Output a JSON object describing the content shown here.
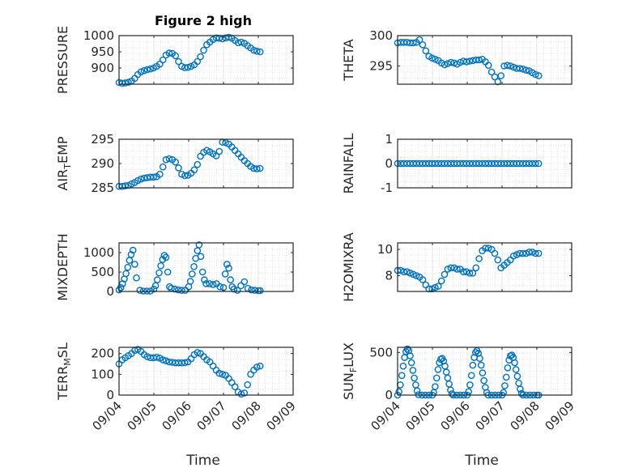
{
  "title": "Figure 2 high",
  "x_axis_label": "Time",
  "colors": {
    "marker": "#0072BD",
    "axis": "#262626",
    "grid": "#dcdcdc"
  },
  "chart_data": [
    {
      "type": "scatter",
      "ylabel": "PRESSURE",
      "ylim": [
        850,
        1000
      ],
      "yticks": [
        "900",
        "950",
        "1000"
      ],
      "x_days": [
        4.0,
        4.09,
        4.18,
        4.27,
        4.36,
        4.45,
        4.54,
        4.63,
        4.72,
        4.81,
        4.9,
        4.99,
        5.08,
        5.17,
        5.26,
        5.35,
        5.44,
        5.53,
        5.62,
        5.71,
        5.8,
        5.89,
        5.98,
        6.07,
        6.16,
        6.25,
        6.34,
        6.43,
        6.52,
        6.61,
        6.7,
        6.79,
        6.88,
        6.97,
        7.06,
        7.15,
        7.24,
        7.33,
        7.42,
        7.51,
        7.6,
        7.69,
        7.78,
        7.87,
        7.96,
        8.05
      ],
      "y": [
        855,
        853,
        854,
        856,
        860,
        868,
        880,
        888,
        892,
        895,
        897,
        900,
        905,
        912,
        925,
        940,
        946,
        945,
        938,
        920,
        905,
        901,
        902,
        905,
        910,
        920,
        935,
        955,
        972,
        980,
        988,
        993,
        992,
        990,
        993,
        995,
        992,
        985,
        978,
        980,
        976,
        969,
        962,
        955,
        952,
        950
      ]
    },
    {
      "type": "scatter",
      "ylabel": "THETA",
      "ylim": [
        292,
        300
      ],
      "yticks": [
        "295",
        "300"
      ],
      "x_days": [
        4.0,
        4.09,
        4.18,
        4.27,
        4.36,
        4.45,
        4.54,
        4.63,
        4.72,
        4.81,
        4.9,
        4.99,
        5.08,
        5.17,
        5.26,
        5.35,
        5.44,
        5.53,
        5.62,
        5.71,
        5.8,
        5.89,
        5.98,
        6.07,
        6.16,
        6.25,
        6.34,
        6.43,
        6.52,
        6.61,
        6.7,
        6.79,
        6.88,
        6.97,
        7.06,
        7.15,
        7.24,
        7.33,
        7.42,
        7.51,
        7.6,
        7.69,
        7.78,
        7.87,
        7.96,
        8.05
      ],
      "y": [
        298.8,
        298.9,
        298.9,
        298.9,
        298.8,
        298.8,
        298.9,
        299.3,
        298.5,
        297.5,
        296.6,
        296.3,
        296.1,
        295.9,
        295.5,
        295.2,
        295.4,
        295.6,
        295.5,
        295.3,
        295.6,
        295.8,
        295.7,
        295.8,
        295.9,
        296.0,
        296.0,
        296.1,
        295.7,
        295.1,
        294.0,
        293.2,
        292.4,
        293.4,
        295.0,
        295.1,
        295.0,
        294.8,
        294.6,
        294.6,
        294.5,
        294.3,
        294.2,
        293.9,
        293.6,
        293.4
      ]
    },
    {
      "type": "scatter",
      "ylabel": "AIR_TEMP",
      "ylim": [
        285,
        295
      ],
      "yticks": [
        "285",
        "290",
        "295"
      ],
      "x_days": [
        4.0,
        4.09,
        4.18,
        4.27,
        4.36,
        4.45,
        4.54,
        4.63,
        4.72,
        4.81,
        4.9,
        4.99,
        5.08,
        5.17,
        5.26,
        5.35,
        5.44,
        5.53,
        5.62,
        5.71,
        5.8,
        5.89,
        5.98,
        6.07,
        6.16,
        6.25,
        6.34,
        6.43,
        6.52,
        6.61,
        6.7,
        6.79,
        6.88,
        6.97,
        7.06,
        7.15,
        7.24,
        7.33,
        7.42,
        7.51,
        7.6,
        7.69,
        7.78,
        7.87,
        7.96,
        8.05
      ],
      "y": [
        285.3,
        285.3,
        285.4,
        285.5,
        285.8,
        286.1,
        286.5,
        286.8,
        287.0,
        287.1,
        287.2,
        287.2,
        287.3,
        287.8,
        289.3,
        290.8,
        291.0,
        290.8,
        290.3,
        289.1,
        287.8,
        287.5,
        287.6,
        288.0,
        288.7,
        289.8,
        291.5,
        292.3,
        292.7,
        292.4,
        292.0,
        291.6,
        292.5,
        294.4,
        294.3,
        294.0,
        293.4,
        292.7,
        292.0,
        291.3,
        290.6,
        290.0,
        289.4,
        289.0,
        288.9,
        289.0
      ]
    },
    {
      "type": "scatter",
      "ylabel": "RAINFALL",
      "ylim": [
        -1,
        1
      ],
      "yticks": [
        "-1",
        "0",
        "1"
      ],
      "x_days": [
        4.0,
        4.09,
        4.18,
        4.27,
        4.36,
        4.45,
        4.54,
        4.63,
        4.72,
        4.81,
        4.9,
        4.99,
        5.08,
        5.17,
        5.26,
        5.35,
        5.44,
        5.53,
        5.62,
        5.71,
        5.8,
        5.89,
        5.98,
        6.07,
        6.16,
        6.25,
        6.34,
        6.43,
        6.52,
        6.61,
        6.7,
        6.79,
        6.88,
        6.97,
        7.06,
        7.15,
        7.24,
        7.33,
        7.42,
        7.51,
        7.6,
        7.69,
        7.78,
        7.87,
        7.96,
        8.05
      ],
      "y": [
        0,
        0,
        0,
        0,
        0,
        0,
        0,
        0,
        0,
        0,
        0,
        0,
        0,
        0,
        0,
        0,
        0,
        0,
        0,
        0,
        0,
        0,
        0,
        0,
        0,
        0,
        0,
        0,
        0,
        0,
        0,
        0,
        0,
        0,
        0,
        0,
        0,
        0,
        0,
        0,
        0,
        0,
        0,
        0,
        0,
        0
      ]
    },
    {
      "type": "scatter",
      "ylabel": "MIXDEPTH",
      "ylim": [
        0,
        1250
      ],
      "yticks": [
        "0",
        "500",
        "1000"
      ],
      "x_days": [
        4.0,
        4.05,
        4.1,
        4.15,
        4.2,
        4.25,
        4.3,
        4.35,
        4.4,
        4.45,
        4.5,
        4.6,
        4.7,
        4.8,
        4.9,
        5.0,
        5.05,
        5.1,
        5.15,
        5.2,
        5.25,
        5.3,
        5.35,
        5.4,
        5.45,
        5.5,
        5.6,
        5.7,
        5.8,
        5.9,
        6.0,
        6.05,
        6.1,
        6.15,
        6.2,
        6.25,
        6.3,
        6.35,
        6.4,
        6.45,
        6.5,
        6.6,
        6.7,
        6.8,
        6.9,
        7.0,
        7.05,
        7.1,
        7.15,
        7.2,
        7.25,
        7.3,
        7.4,
        7.5,
        7.6,
        7.7,
        7.8,
        7.9,
        8.0,
        8.05
      ],
      "y": [
        40,
        100,
        200,
        320,
        460,
        620,
        800,
        950,
        1060,
        700,
        350,
        30,
        10,
        10,
        10,
        60,
        150,
        300,
        480,
        660,
        820,
        930,
        880,
        500,
        120,
        80,
        60,
        40,
        30,
        30,
        120,
        260,
        450,
        640,
        850,
        1050,
        1200,
        900,
        500,
        300,
        200,
        200,
        180,
        200,
        120,
        100,
        450,
        700,
        600,
        300,
        120,
        60,
        30,
        150,
        250,
        80,
        40,
        30,
        20,
        20
      ]
    },
    {
      "type": "scatter",
      "ylabel": "H2OMIXRA",
      "ylim": [
        6.8,
        10.5
      ],
      "yticks": [
        "8",
        "10"
      ],
      "x_days": [
        4.0,
        4.09,
        4.18,
        4.27,
        4.36,
        4.45,
        4.54,
        4.63,
        4.72,
        4.81,
        4.9,
        4.99,
        5.08,
        5.17,
        5.26,
        5.35,
        5.44,
        5.53,
        5.62,
        5.71,
        5.8,
        5.89,
        5.98,
        6.07,
        6.16,
        6.25,
        6.34,
        6.43,
        6.52,
        6.61,
        6.7,
        6.79,
        6.88,
        6.97,
        7.06,
        7.15,
        7.24,
        7.33,
        7.42,
        7.51,
        7.6,
        7.69,
        7.78,
        7.87,
        7.96,
        8.05
      ],
      "y": [
        8.4,
        8.4,
        8.3,
        8.3,
        8.2,
        8.1,
        8.0,
        7.9,
        7.7,
        7.3,
        7.0,
        7.0,
        7.1,
        7.2,
        7.6,
        8.1,
        8.5,
        8.6,
        8.6,
        8.5,
        8.5,
        8.3,
        8.3,
        8.2,
        8.2,
        8.6,
        9.3,
        9.9,
        10.1,
        10.1,
        10.0,
        9.7,
        9.2,
        8.6,
        8.8,
        9.0,
        9.2,
        9.5,
        9.6,
        9.7,
        9.7,
        9.7,
        9.8,
        9.8,
        9.7,
        9.7
      ]
    },
    {
      "type": "scatter",
      "ylabel": "TERR_MSL",
      "ylim": [
        0,
        230
      ],
      "yticks": [
        "0",
        "100",
        "200"
      ],
      "x_days": [
        4.0,
        4.09,
        4.18,
        4.27,
        4.36,
        4.45,
        4.54,
        4.63,
        4.72,
        4.81,
        4.9,
        4.99,
        5.08,
        5.17,
        5.26,
        5.35,
        5.44,
        5.53,
        5.62,
        5.71,
        5.8,
        5.89,
        5.98,
        6.07,
        6.16,
        6.25,
        6.34,
        6.43,
        6.52,
        6.61,
        6.7,
        6.79,
        6.88,
        6.97,
        7.06,
        7.15,
        7.24,
        7.33,
        7.42,
        7.51,
        7.6,
        7.69,
        7.78,
        7.87,
        7.96,
        8.05
      ],
      "y": [
        150,
        170,
        180,
        190,
        200,
        215,
        220,
        210,
        195,
        185,
        180,
        180,
        182,
        178,
        170,
        165,
        160,
        158,
        155,
        155,
        155,
        156,
        160,
        175,
        195,
        205,
        200,
        185,
        170,
        160,
        140,
        120,
        105,
        100,
        95,
        80,
        60,
        40,
        15,
        5,
        10,
        50,
        100,
        120,
        135,
        140
      ]
    },
    {
      "type": "scatter",
      "ylabel": "SUN_FLUX",
      "ylim": [
        0,
        560
      ],
      "yticks": [
        "0",
        "500"
      ],
      "x_days": [
        4.0,
        4.04,
        4.08,
        4.12,
        4.16,
        4.2,
        4.24,
        4.28,
        4.32,
        4.36,
        4.4,
        4.44,
        4.48,
        4.52,
        4.56,
        4.6,
        4.7,
        4.8,
        4.9,
        5.0,
        5.04,
        5.08,
        5.12,
        5.16,
        5.2,
        5.24,
        5.28,
        5.32,
        5.36,
        5.4,
        5.44,
        5.48,
        5.52,
        5.56,
        5.6,
        5.7,
        5.8,
        5.9,
        6.0,
        6.04,
        6.08,
        6.12,
        6.16,
        6.2,
        6.24,
        6.28,
        6.32,
        6.36,
        6.4,
        6.44,
        6.48,
        6.52,
        6.56,
        6.6,
        6.7,
        6.8,
        6.9,
        7.0,
        7.04,
        7.08,
        7.12,
        7.16,
        7.2,
        7.24,
        7.28,
        7.32,
        7.36,
        7.4,
        7.44,
        7.48,
        7.52,
        7.56,
        7.6,
        7.7,
        7.8,
        7.9,
        8.0,
        8.05
      ],
      "y": [
        0,
        40,
        120,
        230,
        340,
        440,
        510,
        540,
        520,
        460,
        380,
        290,
        200,
        120,
        50,
        5,
        0,
        0,
        0,
        0,
        30,
        100,
        200,
        300,
        380,
        420,
        430,
        400,
        340,
        270,
        200,
        130,
        60,
        15,
        0,
        0,
        0,
        0,
        0,
        40,
        120,
        230,
        350,
        440,
        500,
        520,
        490,
        430,
        350,
        260,
        170,
        90,
        30,
        0,
        0,
        0,
        0,
        0,
        30,
        110,
        210,
        320,
        410,
        460,
        470,
        440,
        380,
        300,
        220,
        140,
        70,
        20,
        0,
        0,
        0,
        0,
        0,
        0
      ]
    }
  ],
  "x_ticks": [
    "09/04",
    "09/05",
    "09/06",
    "09/07",
    "09/08",
    "09/09"
  ]
}
